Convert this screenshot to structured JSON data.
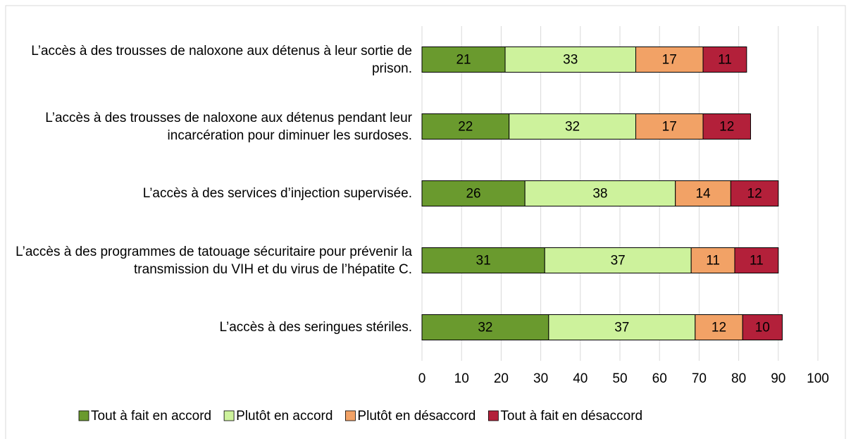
{
  "chart_data": {
    "type": "stacked_barh",
    "categories": [
      "L’accès à des trousses de naloxone aux détenus à leur sortie de prison.",
      "L’accès à des trousses de naloxone aux détenus pendant leur incarcération pour diminuer les surdoses.",
      "L’accès à des services d’injection supervisée.",
      "L’accès à des programmes de tatouage sécuritaire pour prévenir la transmission du VIH et du virus de l’hépatite C.",
      "L’accès à des seringues stériles."
    ],
    "series": [
      {
        "name": "Tout à fait en accord",
        "color": "#6a9a2e",
        "values": [
          21,
          22,
          26,
          31,
          32
        ]
      },
      {
        "name": "Plutôt en accord",
        "color": "#cdf29c",
        "values": [
          33,
          32,
          38,
          37,
          37
        ]
      },
      {
        "name": "Plutôt en désaccord",
        "color": "#f2a266",
        "values": [
          17,
          17,
          14,
          11,
          12
        ]
      },
      {
        "name": "Tout à fait en désaccord",
        "color": "#b3203a",
        "values": [
          11,
          12,
          12,
          11,
          10
        ]
      }
    ],
    "xlim": [
      0,
      100
    ],
    "xticks": [
      0,
      10,
      20,
      30,
      40,
      50,
      60,
      70,
      80,
      90,
      100
    ],
    "grid": true,
    "legend": "bottom"
  }
}
